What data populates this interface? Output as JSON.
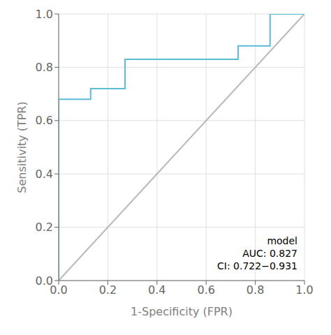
{
  "chart_data": {
    "type": "line",
    "xlabel": "1-Specificity (FPR)",
    "ylabel": "Sensitivity (TPR)",
    "xlim": [
      0.0,
      1.0
    ],
    "ylim": [
      0.0,
      1.0
    ],
    "xticks": [
      {
        "value": 0.0,
        "label": "0.0"
      },
      0.2,
      0.4,
      0.6,
      0.8,
      {
        "value": 1.0,
        "label": "1.0"
      }
    ],
    "yticks": [
      {
        "value": 0.0,
        "label": "0.0"
      },
      0.2,
      0.4,
      0.6,
      0.8,
      {
        "value": 1.0,
        "label": "1.0"
      }
    ],
    "grid": true,
    "series": [
      {
        "color": "#b8b8b8",
        "x": [
          0.0,
          1.0
        ],
        "values": [
          0.0,
          1.0
        ]
      },
      {
        "color": "#5bbcd6",
        "x": [
          0.0,
          0.0,
          0.13,
          0.13,
          0.27,
          0.27,
          0.73,
          0.73,
          0.86,
          0.86,
          1.0
        ],
        "values": [
          0.0,
          0.68,
          0.68,
          0.72,
          0.72,
          0.83,
          0.83,
          0.88,
          0.88,
          1.0,
          1.0
        ]
      }
    ],
    "annotations": [
      "model",
      "AUC: 0.827",
      "CI: 0.722−0.931"
    ]
  }
}
